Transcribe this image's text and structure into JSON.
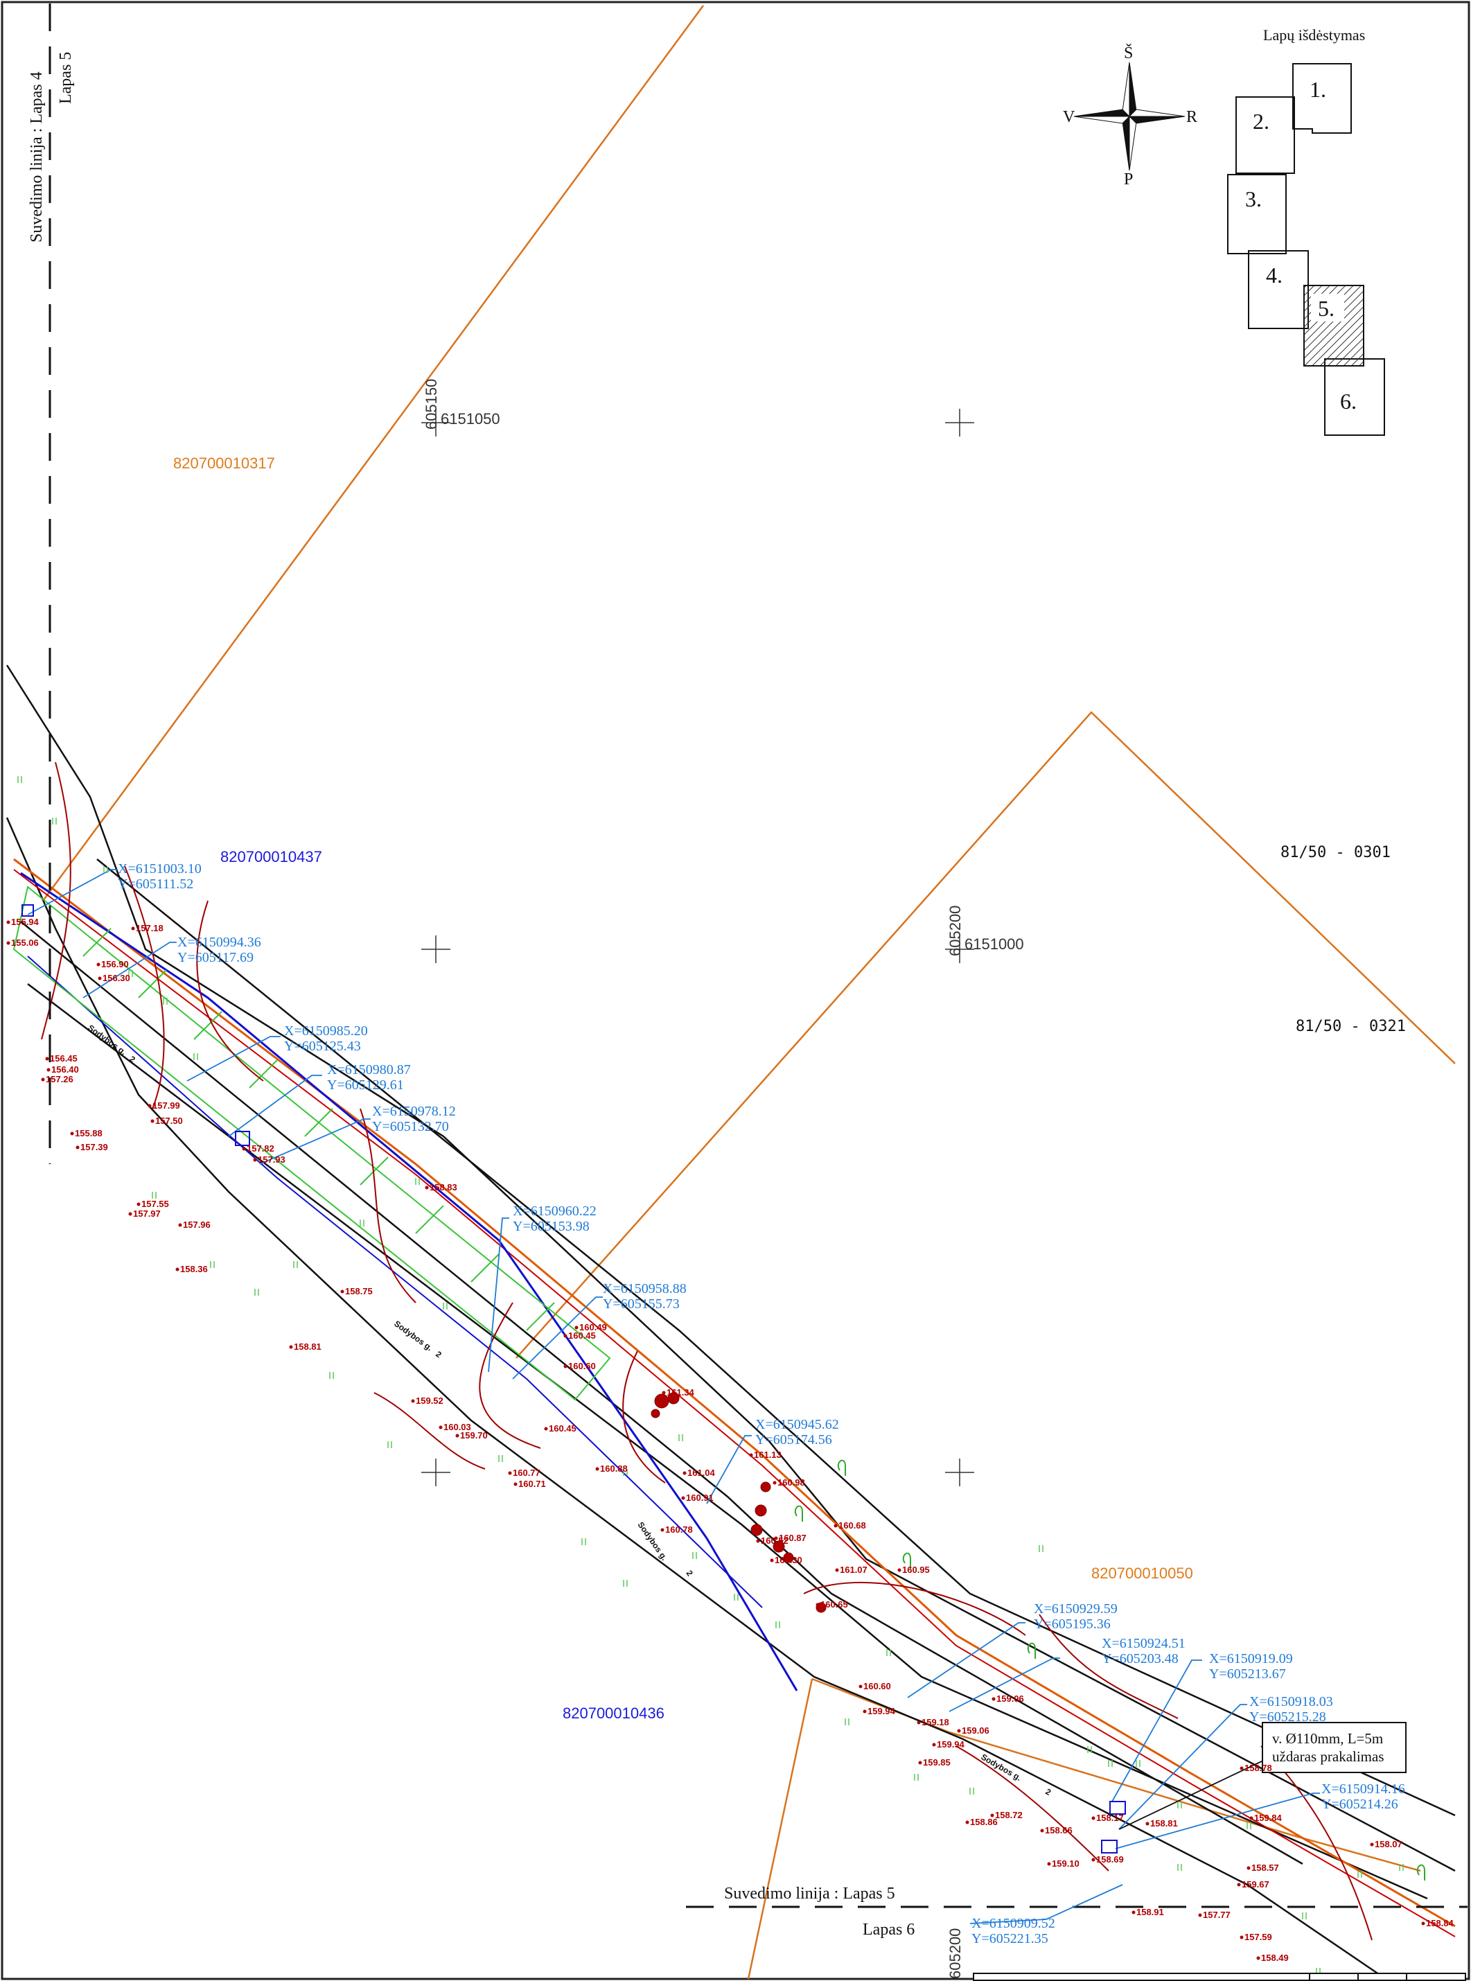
{
  "layout_title": "Lapų išdėstymas",
  "sheets": [
    "1.",
    "2.",
    "3.",
    "4.",
    "5.",
    "6."
  ],
  "current_sheet": "5.",
  "compass": {
    "north": "Š",
    "south": "P",
    "west": "V",
    "east": "R"
  },
  "matchlines": {
    "left": "Suvedimo linija : Lapas 4",
    "left_sub": "Lapas 5",
    "bottom": "Suvedimo linija : Lapas 5",
    "bottom_sub": "Lapas 6"
  },
  "grid_labels": {
    "g1_x": "605150",
    "g1_y": "6151050",
    "g2_x": "605200",
    "g2_y": "6151000",
    "g3_x": "605200"
  },
  "parcels": {
    "p1": "820700010317",
    "p2": "820700010437",
    "p3": "820700010050",
    "p4": "820700010436",
    "p5": "81/50 - 0301",
    "p6": "81/50 - 0321"
  },
  "street": "Sodybos g.",
  "street_num": "2",
  "note": {
    "line1": "v. Ø110mm, L=5m",
    "line2": "uždaras prakalimas"
  },
  "coords": [
    {
      "x": "X=6151003.10",
      "y": "Y=605111.52"
    },
    {
      "x": "X=6150994.36",
      "y": "Y=605117.69"
    },
    {
      "x": "X=6150985.20",
      "y": "Y=605125.43"
    },
    {
      "x": "X=6150980.87",
      "y": "Y=605129.61"
    },
    {
      "x": "X=6150978.12",
      "y": "Y=605132.70"
    },
    {
      "x": "X=6150960.22",
      "y": "Y=605153.98"
    },
    {
      "x": "X=6150958.88",
      "y": "Y=605155.73"
    },
    {
      "x": "X=6150945.62",
      "y": "Y=605174.56"
    },
    {
      "x": "X=6150929.59",
      "y": "Y=605195.36"
    },
    {
      "x": "X=6150924.51",
      "y": "Y=605203.48"
    },
    {
      "x": "X=6150919.09",
      "y": "Y=605213.67"
    },
    {
      "x": "X=6150918.03",
      "y": "Y=605215.28"
    },
    {
      "x": "X=6150914.16",
      "y": "Y=605214.26"
    },
    {
      "x": "X=6150909.52",
      "y": "Y=605221.35"
    }
  ],
  "elevations": [
    "157.18",
    "156.90",
    "156.30",
    "155.06",
    "155.94",
    "156.45",
    "156.40",
    "157.26",
    "157.50",
    "157.39",
    "157.99",
    "157.82",
    "157.93",
    "155.88",
    "157.55",
    "157.97",
    "157.96",
    "158.36",
    "158.75",
    "158.81",
    "158.83",
    "160.45",
    "160.49",
    "160.60",
    "159.52",
    "160.03",
    "159.70",
    "160.45",
    "160.77",
    "160.71",
    "160.88",
    "161.04",
    "161.13",
    "160.91",
    "160.98",
    "161.34",
    "160.78",
    "160.52",
    "160.30",
    "160.87",
    "160.68",
    "161.07",
    "160.95",
    "160.65",
    "160.60",
    "159.94",
    "159.94",
    "159.85",
    "159.18",
    "159.06",
    "159.06",
    "158.86",
    "158.72",
    "158.66",
    "158.69",
    "158.17",
    "158.07",
    "158.57",
    "159.67",
    "159.10",
    "158.91",
    "157.77",
    "157.59",
    "158.49",
    "158.84",
    "158.78",
    "159.84",
    "158.81"
  ]
}
